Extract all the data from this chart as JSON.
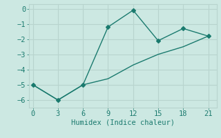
{
  "title": "",
  "xlabel": "Humidex (Indice chaleur)",
  "ylabel": "",
  "bg_color": "#cce8e2",
  "grid_color": "#b8d4ce",
  "line_color": "#1a7a6e",
  "line1_x": [
    0,
    3,
    6,
    9,
    12,
    15,
    18,
    21
  ],
  "line1_y": [
    -5.0,
    -6.0,
    -5.0,
    -1.2,
    -0.1,
    -2.1,
    -1.3,
    -1.8
  ],
  "line2_x": [
    0,
    3,
    6,
    9,
    12,
    15,
    18,
    21
  ],
  "line2_y": [
    -5.0,
    -6.0,
    -5.0,
    -4.6,
    -3.7,
    -3.0,
    -2.5,
    -1.8
  ],
  "xlim": [
    -0.5,
    22
  ],
  "ylim": [
    -6.5,
    0.3
  ],
  "xticks": [
    0,
    3,
    6,
    9,
    12,
    15,
    18,
    21
  ],
  "yticks": [
    0,
    -1,
    -2,
    -3,
    -4,
    -5,
    -6
  ],
  "font_size": 7.5,
  "marker_size": 3.0,
  "linewidth": 1.0
}
